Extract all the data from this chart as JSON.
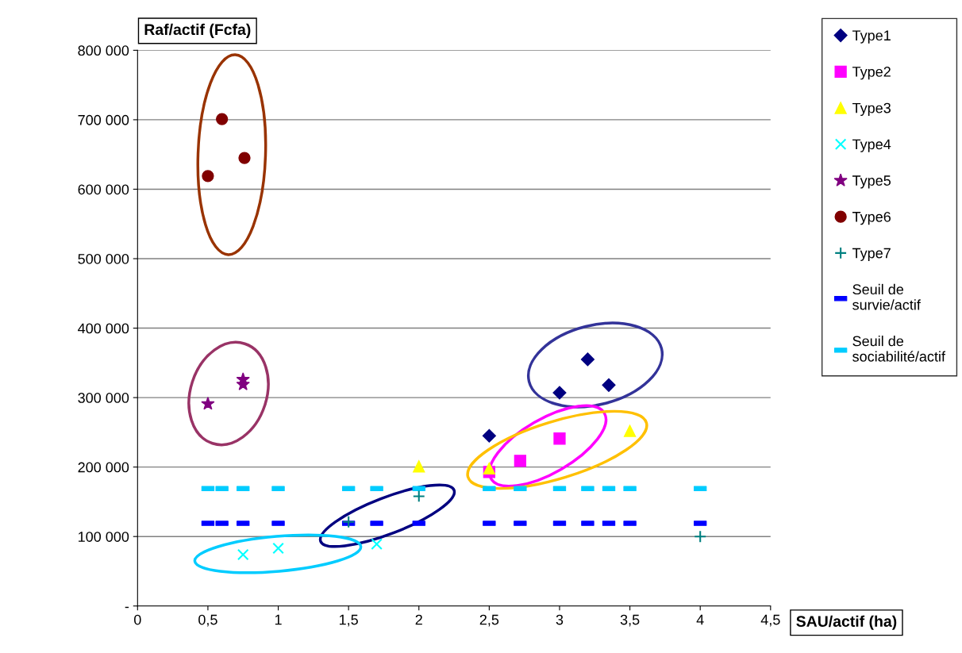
{
  "chart_data": {
    "type": "scatter",
    "xlabel": "SAU/actif (ha)",
    "ylabel": "Raf/actif (Fcfa)",
    "xlim": [
      0,
      4.5
    ],
    "ylim": [
      0,
      800000
    ],
    "xticks": [
      0,
      {
        "value": 0.5,
        "label": "0,5"
      },
      1,
      {
        "value": 1.5,
        "label": "1,5"
      },
      2,
      {
        "value": 2.5,
        "label": "2,5"
      },
      3,
      {
        "value": 3.5,
        "label": "3,5"
      },
      4,
      {
        "value": 4.5,
        "label": "4,5"
      }
    ],
    "yticks": [
      {
        "value": 0,
        "label": "-"
      },
      {
        "value": 100000,
        "label": "100 000"
      },
      {
        "value": 200000,
        "label": "200 000"
      },
      {
        "value": 300000,
        "label": "300 000"
      },
      {
        "value": 400000,
        "label": "400 000"
      },
      {
        "value": 500000,
        "label": "500 000"
      },
      {
        "value": 600000,
        "label": "600 000"
      },
      {
        "value": 700000,
        "label": "700 000"
      },
      {
        "value": 800000,
        "label": "800 000"
      }
    ],
    "grid": "y",
    "legend": "right",
    "series": [
      {
        "name": "Type1",
        "color": "#000080",
        "marker": "diamond",
        "x": [
          2.5,
          3.0,
          3.2,
          3.35
        ],
        "values": [
          245000,
          307000,
          355000,
          318000
        ]
      },
      {
        "name": "Type2",
        "color": "#ff00ff",
        "marker": "square",
        "x": [
          2.5,
          2.72,
          3.0
        ],
        "values": [
          193000,
          209000,
          241000
        ]
      },
      {
        "name": "Type3",
        "color": "#ffff00",
        "marker": "triangle",
        "x": [
          2.0,
          2.5,
          3.5
        ],
        "values": [
          201000,
          198000,
          252000
        ]
      },
      {
        "name": "Type4",
        "color": "#00ffff",
        "marker": "cross",
        "x": [
          0.75,
          1.0,
          1.7
        ],
        "values": [
          74000,
          83000,
          89000
        ]
      },
      {
        "name": "Type5",
        "color": "#800080",
        "marker": "star",
        "x": [
          0.5,
          0.75,
          0.75
        ],
        "values": [
          291000,
          326000,
          319000
        ]
      },
      {
        "name": "Type6",
        "color": "#800000",
        "marker": "circle",
        "x": [
          0.5,
          0.6,
          0.76
        ],
        "values": [
          619000,
          701000,
          645000
        ]
      },
      {
        "name": "Type7",
        "color": "#008080",
        "marker": "plus",
        "x": [
          1.5,
          2.0,
          4.0
        ],
        "values": [
          121000,
          158000,
          100000
        ]
      },
      {
        "name": "Seuil de survie/actif",
        "color": "#0000ff",
        "x": [
          0.5,
          0.6,
          0.75,
          1.0,
          1.5,
          1.7,
          2.0,
          2.5,
          2.72,
          3.0,
          3.2,
          3.35,
          3.5,
          4.0
        ],
        "values": [
          119000,
          119000,
          119000,
          119000,
          119000,
          119000,
          119000,
          119000,
          119000,
          119000,
          119000,
          119000,
          119000,
          119000
        ]
      },
      {
        "name": "Seuil de sociabilité/actif",
        "color": "#00ccff",
        "x": [
          0.5,
          0.6,
          0.75,
          1.0,
          1.5,
          1.7,
          2.0,
          2.5,
          2.72,
          3.0,
          3.2,
          3.35,
          3.5,
          4.0
        ],
        "values": [
          169000,
          169000,
          169000,
          169000,
          169000,
          169000,
          169000,
          169000,
          169000,
          169000,
          169000,
          169000,
          169000,
          169000
        ]
      }
    ]
  }
}
